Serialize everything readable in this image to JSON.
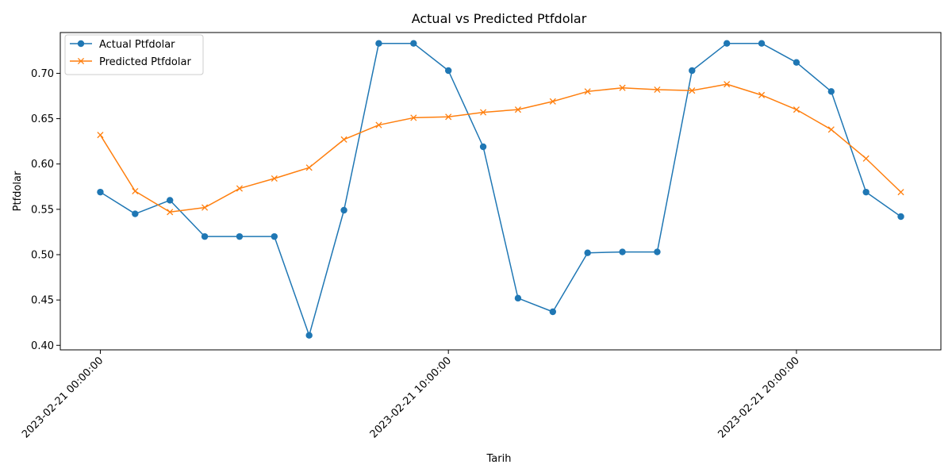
{
  "chart_data": {
    "type": "line",
    "title": "Actual vs Predicted Ptfdolar",
    "xlabel": "Tarih",
    "ylabel": "Ptfdolar",
    "x_tick_labels": [
      "2023-02-21 00:00:00",
      "2023-02-21 10:00:00",
      "2023-02-21 20:00:00"
    ],
    "x_tick_hours": [
      0,
      10,
      20
    ],
    "x_hours": [
      0,
      1,
      2,
      3,
      4,
      5,
      6,
      7,
      8,
      9,
      10,
      11,
      12,
      13,
      14,
      15,
      16,
      17,
      18,
      19,
      20,
      21,
      22,
      23
    ],
    "y_ticks": [
      0.4,
      0.45,
      0.5,
      0.55,
      0.6,
      0.65,
      0.7
    ],
    "y_tick_labels": [
      "0.40",
      "0.45",
      "0.50",
      "0.55",
      "0.60",
      "0.65",
      "0.70"
    ],
    "ylim": [
      0.395,
      0.745
    ],
    "xlim": [
      -1.15,
      24.15
    ],
    "legend_position": "upper left",
    "series": [
      {
        "name": "Actual Ptfdolar",
        "color": "#1f77b4",
        "marker": "circle",
        "values": [
          0.569,
          0.545,
          0.56,
          0.52,
          0.52,
          0.52,
          0.411,
          0.549,
          0.733,
          0.733,
          0.703,
          0.619,
          0.452,
          0.437,
          0.502,
          0.503,
          0.503,
          0.703,
          0.733,
          0.733,
          0.712,
          0.68,
          0.569,
          0.542
        ]
      },
      {
        "name": "Predicted Ptfdolar",
        "color": "#ff7f0e",
        "marker": "x",
        "values": [
          0.632,
          0.57,
          0.547,
          0.552,
          0.573,
          0.584,
          0.596,
          0.627,
          0.643,
          0.651,
          0.652,
          0.657,
          0.66,
          0.669,
          0.68,
          0.684,
          0.682,
          0.681,
          0.688,
          0.676,
          0.66,
          0.638,
          0.606,
          0.569
        ]
      }
    ]
  }
}
